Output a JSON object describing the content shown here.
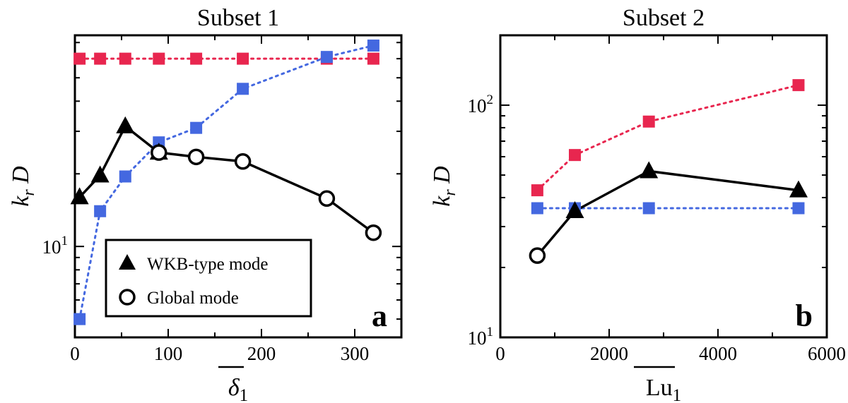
{
  "chart_data": [
    {
      "type": "line",
      "title": "Subset 1",
      "panel_label": "a",
      "xlabel": "δ",
      "xlabel_sub": "1",
      "ylabel": "k",
      "ylabel_sub": "r",
      "ylabel_tail": " D",
      "yscale": "log",
      "xlim": [
        0,
        350
      ],
      "ylim": [
        4.2,
        75
      ],
      "xticks": [
        "0",
        "100",
        "200",
        "300"
      ],
      "xtick_values": [
        0,
        100,
        200,
        300
      ],
      "yticks": [
        {
          "base": "10",
          "exp": "1",
          "value": 10
        }
      ],
      "series": [
        {
          "name": "red-dotted",
          "color": "#e8264f",
          "style": "dotted",
          "marker": "square",
          "x": [
            5,
            27,
            54,
            90,
            130,
            180,
            270,
            320
          ],
          "y": [
            60,
            60,
            60,
            60,
            60,
            60,
            60,
            60
          ]
        },
        {
          "name": "blue-dotted",
          "color": "#4468e0",
          "style": "dotted",
          "marker": "square",
          "x": [
            5,
            27,
            54,
            90,
            130,
            180,
            270,
            320
          ],
          "y": [
            5.0,
            14.0,
            19.5,
            27.0,
            31.0,
            45.0,
            61.0,
            68.0
          ]
        },
        {
          "name": "WKB-type mode",
          "color": "#000000",
          "style": "solid",
          "marker": "triangle",
          "x": [
            5,
            27,
            54,
            90
          ],
          "y": [
            16.0,
            19.7,
            31.5,
            24.5
          ]
        },
        {
          "name": "Global mode",
          "color": "#000000",
          "style": "solid",
          "marker": "circle",
          "x": [
            90,
            130,
            180,
            270,
            320
          ],
          "y": [
            24.5,
            23.5,
            22.5,
            15.8,
            11.4
          ]
        }
      ],
      "legend": {
        "location": "bottom-left",
        "items": [
          {
            "marker": "triangle",
            "label": "WKB-type mode"
          },
          {
            "marker": "circle",
            "label": "Global mode"
          }
        ]
      }
    },
    {
      "type": "line",
      "title": "Subset 2",
      "panel_label": "b",
      "xlabel": "Lu",
      "xlabel_sub": "1",
      "ylabel": "k",
      "ylabel_sub": "r",
      "ylabel_tail": " D",
      "yscale": "log",
      "xlim": [
        0,
        6000
      ],
      "ylim": [
        10,
        200
      ],
      "xticks": [
        "0",
        "2000",
        "4000",
        "6000"
      ],
      "xtick_values": [
        0,
        2000,
        4000,
        6000
      ],
      "yticks": [
        {
          "base": "10",
          "exp": "1",
          "value": 10
        },
        {
          "base": "10",
          "exp": "2",
          "value": 100
        }
      ],
      "series": [
        {
          "name": "red-dotted",
          "color": "#e8264f",
          "style": "dotted",
          "marker": "square",
          "x": [
            680,
            1370,
            2730,
            5480
          ],
          "y": [
            43,
            61,
            85,
            122
          ]
        },
        {
          "name": "blue-dotted",
          "color": "#4468e0",
          "style": "dotted",
          "marker": "square",
          "x": [
            680,
            1370,
            2730,
            5480
          ],
          "y": [
            36,
            36,
            36,
            36
          ]
        },
        {
          "name": "WKB-type mode",
          "color": "#000000",
          "style": "solid",
          "marker": "triangle",
          "x": [
            1370,
            2730,
            5480
          ],
          "y": [
            35,
            52,
            43
          ]
        },
        {
          "name": "Global mode",
          "color": "#000000",
          "style": "solid",
          "marker": "circle",
          "x": [
            680
          ],
          "y": [
            22.5
          ]
        },
        {
          "name": "black-link",
          "color": "#000000",
          "style": "solid",
          "marker": "none",
          "x": [
            680,
            1370
          ],
          "y": [
            22.5,
            35
          ]
        }
      ]
    }
  ]
}
